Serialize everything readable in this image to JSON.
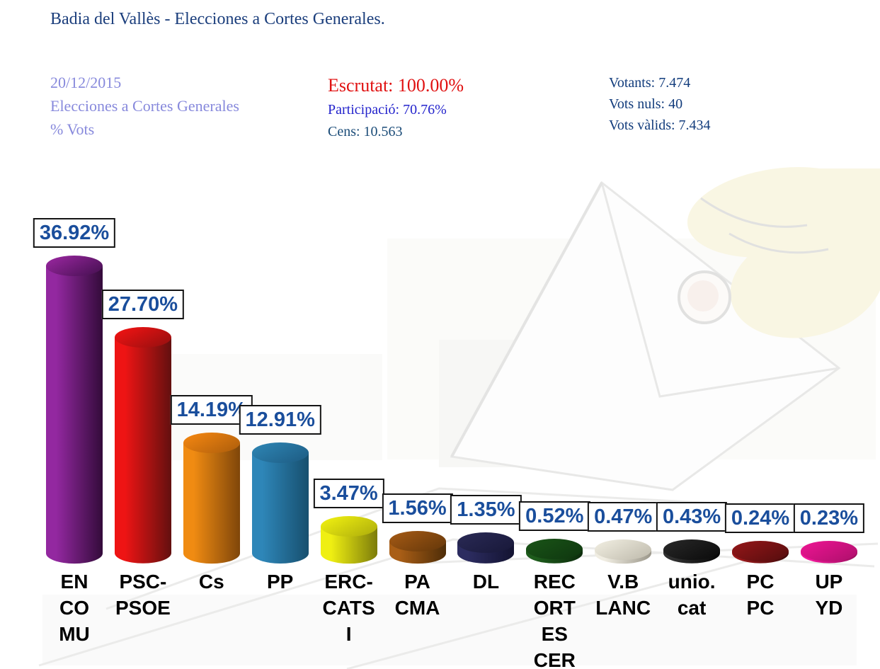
{
  "title": "Badia del Vallès - Elecciones a Cortes Generales.",
  "info_block": {
    "date": "20/12/2015",
    "election_name": "Elecciones a Cortes Generales",
    "metric": "% Vots",
    "text_color": "#8789DC"
  },
  "scrutiny_block": {
    "escrutat": "Escrutat: 100.00%",
    "escrutat_color": "#E01111",
    "participacio": "Participació: 70.76%",
    "participacio_color": "#2323CC",
    "cens": "Cens: 10.563",
    "cens_color": "#1B4C78"
  },
  "totals_block": {
    "votants": "Votants: 7.474",
    "vots_nuls": "Vots nuls: 40",
    "vots_valids": "Vots vàlids: 7.434",
    "text_color": "#123C7C"
  },
  "chart_data": {
    "type": "bar",
    "style": "3d-cylinder",
    "title": "",
    "xlabel": "",
    "ylabel": "% Vots",
    "ylim": [
      0,
      40
    ],
    "grid": false,
    "axes_visible": false,
    "data_labels": true,
    "data_label_color": "#1A4E9C",
    "data_label_box": {
      "background": "#ffffff",
      "border": "#141414"
    },
    "categories": [
      "ENCOMU",
      "PSC-PSOE",
      "Cs",
      "PP",
      "ERC-CATSI",
      "PACMA",
      "DL",
      "RECORTESCER",
      "V.BLANC",
      "unio.cat",
      "PCPC",
      "UPYD"
    ],
    "category_lines": [
      [
        "EN",
        "CO",
        "MU"
      ],
      [
        "PSC-",
        "PSOE"
      ],
      [
        "Cs"
      ],
      [
        "PP"
      ],
      [
        "ERC-",
        "CATS",
        "I"
      ],
      [
        "PA",
        "CMA"
      ],
      [
        "DL"
      ],
      [
        "REC",
        "ORT",
        "ES",
        "CER"
      ],
      [
        "V.B",
        "LANC"
      ],
      [
        "unio.",
        "cat"
      ],
      [
        "PC",
        "PC"
      ],
      [
        "UP",
        "YD"
      ]
    ],
    "values": [
      36.92,
      27.7,
      14.19,
      12.91,
      3.47,
      1.56,
      1.35,
      0.52,
      0.47,
      0.43,
      0.24,
      0.23
    ],
    "value_labels": [
      "36.92%",
      "27.70%",
      "14.19%",
      "12.91%",
      "3.47%",
      "1.56%",
      "1.35%",
      "0.52%",
      "0.47%",
      "0.43%",
      "0.24%",
      "0.23%"
    ],
    "colors": [
      {
        "light": "#9328A0",
        "dark": "#330B3A",
        "top_light": "#8F2496",
        "top_dark": "#4E1259"
      },
      {
        "light": "#EE1414",
        "dark": "#63100F",
        "top_light": "#E81212",
        "top_dark": "#9E1010"
      },
      {
        "light": "#F08B12",
        "dark": "#7F460A",
        "top_light": "#EC8210",
        "top_dark": "#B5620C"
      },
      {
        "light": "#2E86B8",
        "dark": "#174F6E",
        "top_light": "#2C80AE",
        "top_dark": "#1F6088"
      },
      {
        "light": "#EFEF12",
        "dark": "#7C7C0A",
        "top_light": "#E9E910",
        "top_dark": "#B4B40C"
      },
      {
        "light": "#A95E16",
        "dark": "#4E2D08",
        "top_light": "#9C5513",
        "top_dark": "#6B3B0B"
      },
      {
        "light": "#2C2C60",
        "dark": "#131331",
        "top_light": "#272751",
        "top_dark": "#1A1A3C"
      },
      {
        "light": "#1E5C1C",
        "dark": "#0C2C0C",
        "top_light": "#185016",
        "top_dark": "#103A10"
      },
      {
        "light": "#F0EDE2",
        "dark": "#9B978A",
        "top_light": "#EAE7DA",
        "top_dark": "#C4C0B2"
      },
      {
        "light": "#303030",
        "dark": "#070707",
        "top_light": "#242424",
        "top_dark": "#0E0E0E"
      },
      {
        "light": "#9A191B",
        "dark": "#3E0A0A",
        "top_light": "#8C1517",
        "top_dark": "#5C0E0F"
      },
      {
        "light": "#F0189A",
        "dark": "#9C0E5E",
        "top_light": "#E5148E",
        "top_dark": "#B51070"
      }
    ]
  },
  "watermark": {
    "description": "faint ballot envelope with hand over ballot box",
    "envelope_color": "#fdfdfd",
    "line_color": "#d7d7d5",
    "hand_color": "#f5efcd",
    "hole_color": "#f3e4de"
  }
}
